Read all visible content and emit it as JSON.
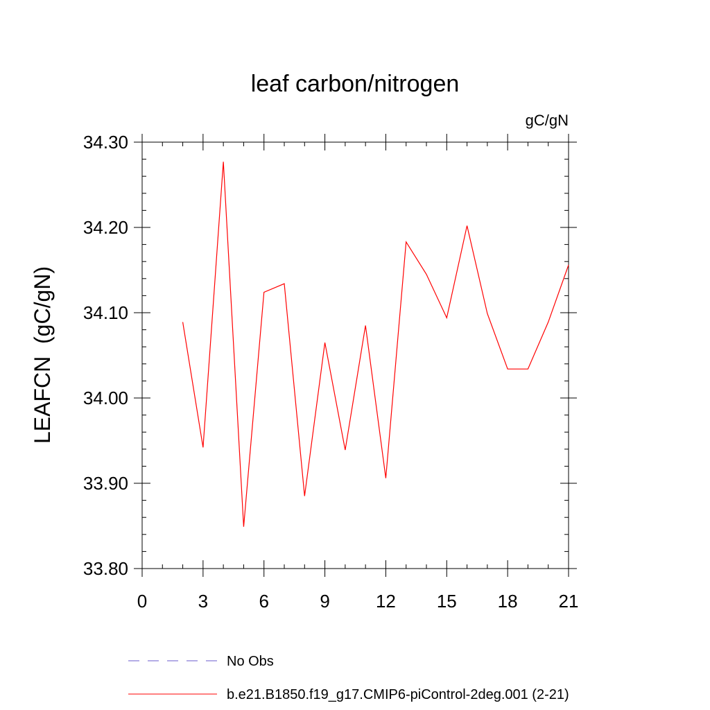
{
  "chart_data": {
    "type": "line",
    "title": "leaf carbon/nitrogen",
    "units": "gC/gN",
    "ylabel": "LEAFCN  (gC/gN)",
    "xlabel": "",
    "xlim": [
      0,
      21
    ],
    "ylim": [
      33.8,
      34.3
    ],
    "xticks": [
      0,
      3,
      6,
      9,
      12,
      15,
      18,
      21
    ],
    "yticks": [
      33.8,
      33.9,
      34.0,
      34.1,
      34.2,
      34.3
    ],
    "ytick_labels": [
      "33.80",
      "33.90",
      "34.00",
      "34.10",
      "34.20",
      "34.30"
    ],
    "grid": false,
    "legend_position": "bottom",
    "series": [
      {
        "name": "b.e21.B1850.f19_g17.CMIP6-piControl-2deg.001 (2-21)",
        "color": "#ff0000",
        "dash": "solid",
        "x": [
          2,
          3,
          4,
          5,
          6,
          7,
          8,
          9,
          10,
          11,
          12,
          13,
          14,
          15,
          16,
          17,
          18,
          19,
          20,
          21
        ],
        "y": [
          34.089,
          33.942,
          34.277,
          33.849,
          34.124,
          34.134,
          33.885,
          34.065,
          33.939,
          34.085,
          33.906,
          34.183,
          34.145,
          34.094,
          34.202,
          34.099,
          34.034,
          34.034,
          34.089,
          34.156
        ]
      }
    ],
    "legend": [
      {
        "label": "No Obs",
        "color": "#6a5acd",
        "dash": "dashed"
      },
      {
        "label": "b.e21.B1850.f19_g17.CMIP6-piControl-2deg.001 (2-21)",
        "color": "#ff0000",
        "dash": "solid"
      }
    ]
  }
}
